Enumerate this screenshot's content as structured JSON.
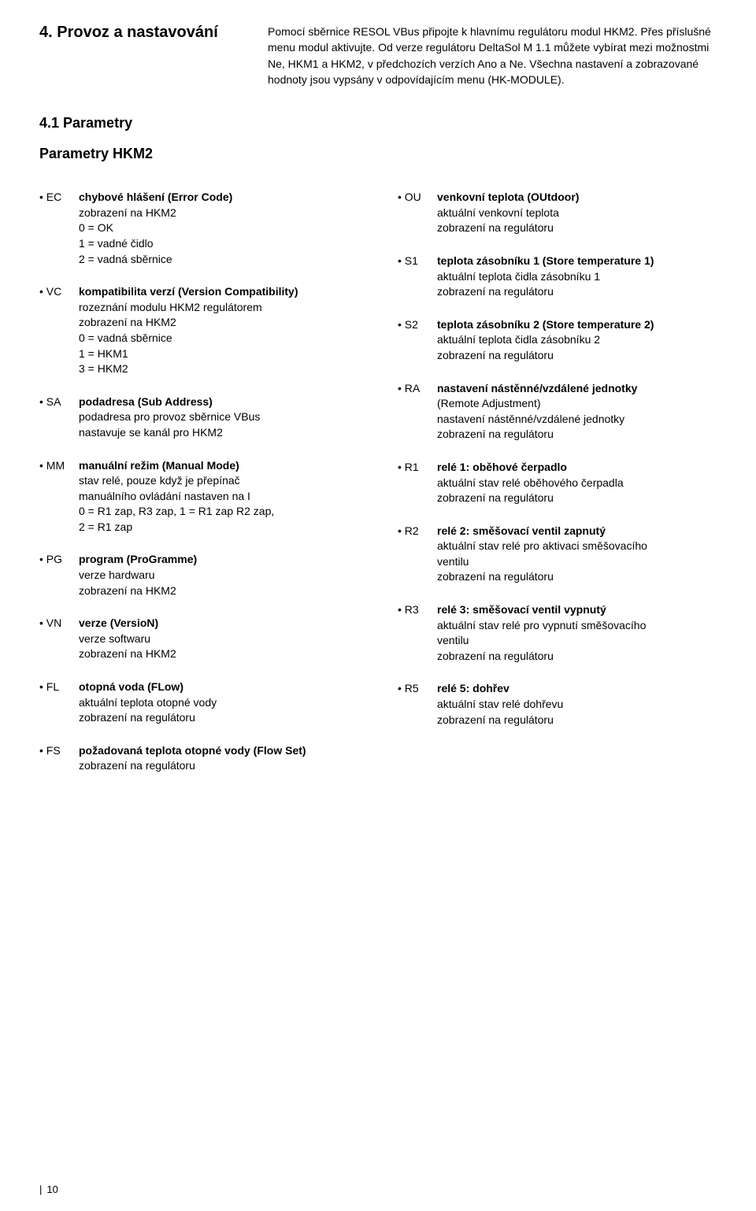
{
  "header": {
    "section_title": "4. Provoz a nastavování",
    "intro": "Pomocí sběrnice RESOL VBus připojte k hlavnímu regulátoru modul HKM2. Přes příslušné menu modul aktivujte. Od verze regulátoru DeltaSol M 1.1 můžete vybírat mezi možnostmi Ne, HKM1 a HKM2, v předchozích verzích Ano a Ne. Všechna nastavení a zobrazované hodnoty jsou vypsány v odpovídajícím menu (HK-MODULE)."
  },
  "subsection_title": "4.1 Parametry",
  "params_title": "Parametry HKM2",
  "left": [
    {
      "code": "• EC",
      "label": "chybové hlášení (Error Code)",
      "lines": [
        "zobrazení na HKM2",
        "0 = OK",
        "1 = vadné čidlo",
        "2 = vadná sběrnice"
      ]
    },
    {
      "code": "• VC",
      "label": "kompatibilita verzí (Version Compatibility)",
      "lines": [
        "rozeznání modulu HKM2 regulátorem",
        "zobrazení na HKM2",
        "0 = vadná sběrnice",
        "1 = HKM1",
        "3 = HKM2"
      ]
    },
    {
      "code": "• SA",
      "label": "podadresa (Sub Address)",
      "lines": [
        "podadresa pro provoz sběrnice VBus",
        "nastavuje se kanál pro HKM2"
      ]
    },
    {
      "code": "• MM",
      "label": "manuální režim (Manual Mode)",
      "lines": [
        "stav relé, pouze když je přepínač",
        "manuálního ovládání nastaven na I",
        "0 = R1 zap, R3 zap, 1 = R1 zap R2 zap,",
        "2 = R1 zap"
      ]
    },
    {
      "code": "• PG",
      "label": "program (ProGramme)",
      "lines": [
        "verze hardwaru",
        "zobrazení na HKM2"
      ]
    },
    {
      "code": "• VN",
      "label": "verze (VersioN)",
      "lines": [
        "verze softwaru",
        "zobrazení na HKM2"
      ]
    },
    {
      "code": "• FL",
      "label": "otopná voda (FLow)",
      "lines": [
        "aktuální teplota otopné vody",
        "zobrazení na regulátoru"
      ]
    },
    {
      "code": "• FS",
      "label": "požadovaná teplota otopné vody (Flow Set)",
      "lines": [
        "zobrazení na regulátoru"
      ]
    }
  ],
  "right": [
    {
      "code": "• OU",
      "label": "venkovní teplota (OUtdoor)",
      "lines": [
        "aktuální venkovní teplota",
        "zobrazení na regulátoru"
      ]
    },
    {
      "code": "• S1",
      "label": "teplota zásobníku 1 (Store temperature 1)",
      "lines": [
        "aktuální teplota čidla zásobníku 1",
        "zobrazení na regulátoru"
      ]
    },
    {
      "code": "• S2",
      "label": "teplota zásobníku 2 (Store temperature 2)",
      "lines": [
        "aktuální teplota čidla zásobníku 2",
        "zobrazení na regulátoru"
      ]
    },
    {
      "code": "• RA",
      "label": "nastavení nástěnné/vzdálené jednotky",
      "lines": [
        "(Remote Adjustment)",
        "nastavení nástěnné/vzdálené jednotky",
        "zobrazení na regulátoru"
      ]
    },
    {
      "code": "• R1",
      "label": "relé 1: oběhové čerpadlo",
      "lines": [
        "aktuální stav relé oběhového čerpadla",
        "zobrazení na regulátoru"
      ]
    },
    {
      "code": "• R2",
      "label": "relé 2: směšovací ventil zapnutý",
      "lines": [
        "aktuální stav relé pro aktivaci směšovacího",
        "ventilu",
        "zobrazení na regulátoru"
      ]
    },
    {
      "code": "• R3",
      "label": "relé 3: směšovací ventil vypnutý",
      "lines": [
        "aktuální stav relé pro vypnutí směšovacího",
        "ventilu",
        "zobrazení na regulátoru"
      ]
    },
    {
      "code": "• R5",
      "label": "relé 5: dohřev",
      "lines": [
        "aktuální stav relé dohřevu",
        "zobrazení na regulátoru"
      ]
    }
  ],
  "page_number": "10"
}
